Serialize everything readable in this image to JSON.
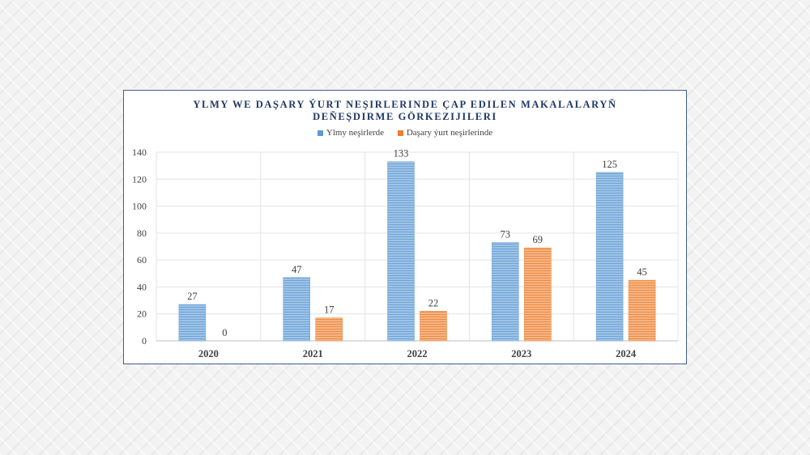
{
  "chart_data": {
    "type": "bar",
    "title_lines": [
      "YLMY WE DAŞARY ÝURT NEŞIRLERINDE ÇAP EDILEN MAKALALARYŇ",
      "DEŇEŞDIRME GÖRKEZIJILERI"
    ],
    "categories": [
      "2020",
      "2021",
      "2022",
      "2023",
      "2024"
    ],
    "series": [
      {
        "name": "Ylmy neşirlerde",
        "values": [
          27,
          47,
          133,
          73,
          125
        ],
        "color": "#8db4e2"
      },
      {
        "name": "Daşary ýurt neşirlerinde",
        "values": [
          0,
          17,
          22,
          69,
          45
        ],
        "color": "#f4a462"
      }
    ],
    "yticks": [
      "0",
      "20",
      "40",
      "60",
      "80",
      "100",
      "120",
      "140"
    ],
    "ylim": [
      0,
      140
    ],
    "grid": true,
    "legend_position": "top"
  }
}
